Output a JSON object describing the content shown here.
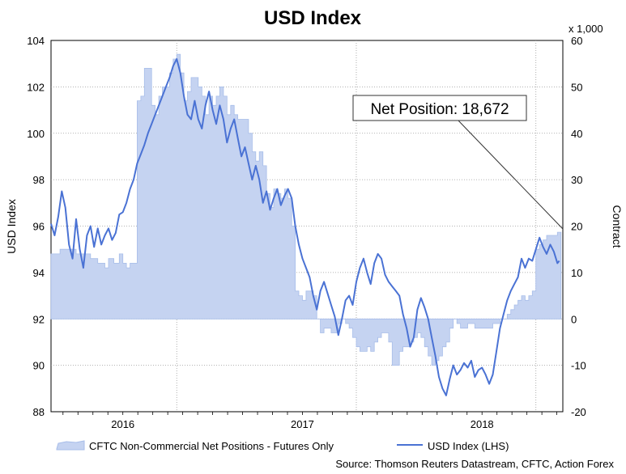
{
  "chart_data": {
    "type": "area+line",
    "title": "USD Index",
    "ylabel_left": "USD Index",
    "ylabel_right": "Contract",
    "right_multiplier": "x 1,000",
    "ylim_left": [
      88,
      104
    ],
    "ylim_right": [
      -20,
      60
    ],
    "left_ticks": [
      "88",
      "90",
      "92",
      "94",
      "96",
      "98",
      "100",
      "102",
      "104"
    ],
    "right_ticks": [
      "-20",
      "-10",
      "0",
      "10",
      "20",
      "30",
      "40",
      "50",
      "60"
    ],
    "x_ticks": [
      "2016",
      "2017",
      "2018"
    ],
    "x_range_years": [
      2015.6,
      2018.45
    ],
    "grid": true,
    "series": [
      {
        "name": "CFTC Non-Commercial Net Positions - Futures Only",
        "kind": "area",
        "axis": "right",
        "color": "#c5d3f1",
        "points": [
          [
            2015.6,
            14
          ],
          [
            2015.65,
            15
          ],
          [
            2015.7,
            15
          ],
          [
            2015.74,
            14
          ],
          [
            2015.78,
            14
          ],
          [
            2015.82,
            13
          ],
          [
            2015.86,
            12
          ],
          [
            2015.9,
            11
          ],
          [
            2015.92,
            13
          ],
          [
            2015.95,
            12
          ],
          [
            2015.98,
            14
          ],
          [
            2016.0,
            12
          ],
          [
            2016.02,
            11
          ],
          [
            2016.04,
            12
          ],
          [
            2016.06,
            12
          ],
          [
            2016.08,
            47
          ],
          [
            2016.1,
            48
          ],
          [
            2016.12,
            54
          ],
          [
            2016.14,
            54
          ],
          [
            2016.16,
            46
          ],
          [
            2016.18,
            44
          ],
          [
            2016.2,
            48
          ],
          [
            2016.22,
            50
          ],
          [
            2016.24,
            50
          ],
          [
            2016.26,
            53
          ],
          [
            2016.28,
            56
          ],
          [
            2016.3,
            57
          ],
          [
            2016.32,
            53
          ],
          [
            2016.34,
            47
          ],
          [
            2016.36,
            49
          ],
          [
            2016.38,
            52
          ],
          [
            2016.4,
            52
          ],
          [
            2016.42,
            50
          ],
          [
            2016.44,
            48
          ],
          [
            2016.46,
            44
          ],
          [
            2016.48,
            48
          ],
          [
            2016.5,
            46
          ],
          [
            2016.52,
            48
          ],
          [
            2016.54,
            50
          ],
          [
            2016.56,
            48
          ],
          [
            2016.58,
            44
          ],
          [
            2016.6,
            46
          ],
          [
            2016.62,
            44
          ],
          [
            2016.64,
            43
          ],
          [
            2016.66,
            43
          ],
          [
            2016.68,
            43
          ],
          [
            2016.7,
            40
          ],
          [
            2016.72,
            36
          ],
          [
            2016.74,
            34
          ],
          [
            2016.76,
            36
          ],
          [
            2016.78,
            33
          ],
          [
            2016.8,
            27
          ],
          [
            2016.82,
            24
          ],
          [
            2016.84,
            28
          ],
          [
            2016.86,
            27
          ],
          [
            2016.88,
            26
          ],
          [
            2016.9,
            28
          ],
          [
            2016.92,
            26
          ],
          [
            2016.94,
            20
          ],
          [
            2016.96,
            6
          ],
          [
            2016.98,
            5
          ],
          [
            2017.0,
            4
          ],
          [
            2017.02,
            6
          ],
          [
            2017.04,
            6
          ],
          [
            2017.06,
            5
          ],
          [
            2017.08,
            0
          ],
          [
            2017.1,
            -3
          ],
          [
            2017.12,
            -2
          ],
          [
            2017.14,
            -2
          ],
          [
            2017.16,
            -3
          ],
          [
            2017.18,
            -3
          ],
          [
            2017.2,
            -1
          ],
          [
            2017.22,
            0
          ],
          [
            2017.24,
            -1
          ],
          [
            2017.26,
            -2
          ],
          [
            2017.28,
            -4
          ],
          [
            2017.3,
            -6
          ],
          [
            2017.32,
            -7
          ],
          [
            2017.34,
            -7
          ],
          [
            2017.36,
            -6
          ],
          [
            2017.38,
            -7
          ],
          [
            2017.4,
            -5
          ],
          [
            2017.42,
            -4
          ],
          [
            2017.44,
            -3
          ],
          [
            2017.46,
            -3
          ],
          [
            2017.48,
            -5
          ],
          [
            2017.5,
            -10
          ],
          [
            2017.52,
            -10
          ],
          [
            2017.54,
            -7
          ],
          [
            2017.56,
            -6
          ],
          [
            2017.58,
            -6
          ],
          [
            2017.6,
            -5
          ],
          [
            2017.62,
            -4
          ],
          [
            2017.64,
            -3
          ],
          [
            2017.66,
            -4
          ],
          [
            2017.68,
            -6
          ],
          [
            2017.7,
            -8
          ],
          [
            2017.72,
            -10
          ],
          [
            2017.74,
            -9
          ],
          [
            2017.76,
            -8
          ],
          [
            2017.78,
            -6
          ],
          [
            2017.8,
            -5
          ],
          [
            2017.82,
            -2
          ],
          [
            2017.84,
            0
          ],
          [
            2017.86,
            -1
          ],
          [
            2017.88,
            -2
          ],
          [
            2017.9,
            -2
          ],
          [
            2017.92,
            -1
          ],
          [
            2017.94,
            -1
          ],
          [
            2017.96,
            -2
          ],
          [
            2017.98,
            -2
          ],
          [
            2018.0,
            -2
          ],
          [
            2018.02,
            -2
          ],
          [
            2018.04,
            -2
          ],
          [
            2018.06,
            -1
          ],
          [
            2018.08,
            -1
          ],
          [
            2018.1,
            0
          ],
          [
            2018.12,
            0
          ],
          [
            2018.14,
            1
          ],
          [
            2018.16,
            2
          ],
          [
            2018.18,
            3
          ],
          [
            2018.2,
            4
          ],
          [
            2018.22,
            5
          ],
          [
            2018.24,
            4
          ],
          [
            2018.26,
            5
          ],
          [
            2018.28,
            6
          ],
          [
            2018.3,
            15
          ],
          [
            2018.32,
            16
          ],
          [
            2018.34,
            17
          ],
          [
            2018.36,
            18
          ],
          [
            2018.38,
            18
          ],
          [
            2018.4,
            18
          ],
          [
            2018.42,
            18.67
          ]
        ]
      },
      {
        "name": "USD Index (LHS)",
        "kind": "line",
        "axis": "left",
        "color": "#4a72d4",
        "points": [
          [
            2015.6,
            96.1
          ],
          [
            2015.62,
            95.6
          ],
          [
            2015.64,
            96.4
          ],
          [
            2015.66,
            97.5
          ],
          [
            2015.68,
            96.8
          ],
          [
            2015.7,
            95.2
          ],
          [
            2015.72,
            94.6
          ],
          [
            2015.74,
            96.3
          ],
          [
            2015.76,
            95.0
          ],
          [
            2015.78,
            94.2
          ],
          [
            2015.8,
            95.6
          ],
          [
            2015.82,
            96.0
          ],
          [
            2015.84,
            95.1
          ],
          [
            2015.86,
            95.9
          ],
          [
            2015.88,
            95.2
          ],
          [
            2015.9,
            95.6
          ],
          [
            2015.92,
            95.9
          ],
          [
            2015.94,
            95.4
          ],
          [
            2015.96,
            95.7
          ],
          [
            2015.98,
            96.5
          ],
          [
            2016.0,
            96.6
          ],
          [
            2016.02,
            97.0
          ],
          [
            2016.04,
            97.6
          ],
          [
            2016.06,
            98.0
          ],
          [
            2016.08,
            98.7
          ],
          [
            2016.1,
            99.1
          ],
          [
            2016.12,
            99.5
          ],
          [
            2016.14,
            100.0
          ],
          [
            2016.16,
            100.4
          ],
          [
            2016.18,
            100.8
          ],
          [
            2016.2,
            101.2
          ],
          [
            2016.22,
            101.6
          ],
          [
            2016.24,
            102.0
          ],
          [
            2016.26,
            102.4
          ],
          [
            2016.28,
            102.9
          ],
          [
            2016.3,
            103.2
          ],
          [
            2016.32,
            102.6
          ],
          [
            2016.34,
            101.6
          ],
          [
            2016.36,
            100.8
          ],
          [
            2016.38,
            100.6
          ],
          [
            2016.4,
            101.4
          ],
          [
            2016.42,
            100.6
          ],
          [
            2016.44,
            100.2
          ],
          [
            2016.46,
            101.2
          ],
          [
            2016.48,
            101.8
          ],
          [
            2016.5,
            101.0
          ],
          [
            2016.52,
            100.4
          ],
          [
            2016.54,
            101.2
          ],
          [
            2016.56,
            100.6
          ],
          [
            2016.58,
            99.6
          ],
          [
            2016.6,
            100.2
          ],
          [
            2016.62,
            100.6
          ],
          [
            2016.64,
            99.8
          ],
          [
            2016.66,
            99.0
          ],
          [
            2016.68,
            99.4
          ],
          [
            2016.7,
            98.7
          ],
          [
            2016.72,
            98.0
          ],
          [
            2016.74,
            98.6
          ],
          [
            2016.76,
            98.0
          ],
          [
            2016.78,
            97.0
          ],
          [
            2016.8,
            97.5
          ],
          [
            2016.82,
            96.7
          ],
          [
            2016.84,
            97.2
          ],
          [
            2016.86,
            97.6
          ],
          [
            2016.88,
            96.9
          ],
          [
            2016.9,
            97.3
          ],
          [
            2016.92,
            97.6
          ],
          [
            2016.94,
            97.2
          ],
          [
            2016.96,
            96.0
          ],
          [
            2016.98,
            95.2
          ],
          [
            2017.0,
            94.6
          ],
          [
            2017.02,
            94.2
          ],
          [
            2017.04,
            93.8
          ],
          [
            2017.06,
            93.0
          ],
          [
            2017.08,
            92.4
          ],
          [
            2017.1,
            93.2
          ],
          [
            2017.12,
            93.6
          ],
          [
            2017.14,
            93.1
          ],
          [
            2017.16,
            92.6
          ],
          [
            2017.18,
            92.1
          ],
          [
            2017.2,
            91.3
          ],
          [
            2017.22,
            92.0
          ],
          [
            2017.24,
            92.8
          ],
          [
            2017.26,
            93.0
          ],
          [
            2017.28,
            92.6
          ],
          [
            2017.3,
            93.6
          ],
          [
            2017.32,
            94.2
          ],
          [
            2017.34,
            94.6
          ],
          [
            2017.36,
            94.0
          ],
          [
            2017.38,
            93.5
          ],
          [
            2017.4,
            94.4
          ],
          [
            2017.42,
            94.8
          ],
          [
            2017.44,
            94.6
          ],
          [
            2017.46,
            93.9
          ],
          [
            2017.48,
            93.6
          ],
          [
            2017.5,
            93.4
          ],
          [
            2017.52,
            93.2
          ],
          [
            2017.54,
            93.0
          ],
          [
            2017.56,
            92.2
          ],
          [
            2017.58,
            91.6
          ],
          [
            2017.6,
            90.8
          ],
          [
            2017.62,
            91.2
          ],
          [
            2017.64,
            92.4
          ],
          [
            2017.66,
            92.9
          ],
          [
            2017.68,
            92.5
          ],
          [
            2017.7,
            92.0
          ],
          [
            2017.72,
            91.2
          ],
          [
            2017.74,
            90.4
          ],
          [
            2017.76,
            89.5
          ],
          [
            2017.78,
            89.0
          ],
          [
            2017.8,
            88.7
          ],
          [
            2017.82,
            89.4
          ],
          [
            2017.84,
            90.0
          ],
          [
            2017.86,
            89.6
          ],
          [
            2017.88,
            89.8
          ],
          [
            2017.9,
            90.1
          ],
          [
            2017.92,
            89.9
          ],
          [
            2017.94,
            90.2
          ],
          [
            2017.96,
            89.5
          ],
          [
            2017.98,
            89.8
          ],
          [
            2018.0,
            89.9
          ],
          [
            2018.02,
            89.6
          ],
          [
            2018.04,
            89.2
          ],
          [
            2018.06,
            89.6
          ],
          [
            2018.08,
            90.6
          ],
          [
            2018.1,
            91.6
          ],
          [
            2018.12,
            92.2
          ],
          [
            2018.14,
            92.8
          ],
          [
            2018.16,
            93.2
          ],
          [
            2018.18,
            93.5
          ],
          [
            2018.2,
            93.8
          ],
          [
            2018.22,
            94.6
          ],
          [
            2018.24,
            94.2
          ],
          [
            2018.26,
            94.6
          ],
          [
            2018.28,
            94.5
          ],
          [
            2018.3,
            95.0
          ],
          [
            2018.32,
            95.5
          ],
          [
            2018.34,
            95.1
          ],
          [
            2018.36,
            94.8
          ],
          [
            2018.38,
            95.2
          ],
          [
            2018.4,
            94.9
          ],
          [
            2018.42,
            94.4
          ],
          [
            2018.43,
            94.5
          ]
        ]
      }
    ],
    "annotation": {
      "text": "Net Position: 18,672",
      "target": [
        2018.45,
        18.672
      ]
    }
  },
  "legend": {
    "area_label": "CFTC Non-Commercial Net Positions - Futures Only",
    "line_label": "USD Index (LHS)"
  },
  "source": "Source: Thomson Reuters Datastream, CFTC, Action Forex",
  "colors": {
    "area_fill": "#c5d3f1",
    "area_edge": "#a7bde9",
    "line": "#4a72d4",
    "grid": "#9a9a9a"
  }
}
